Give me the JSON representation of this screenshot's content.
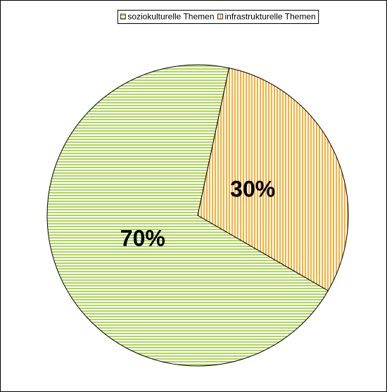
{
  "chart_data": {
    "type": "pie",
    "categories": [
      "soziokulturelle Themen",
      "infrastrukturelle Themen"
    ],
    "values": [
      70,
      30
    ],
    "value_labels": [
      "70%",
      "30%"
    ],
    "colors": [
      "#99cc33",
      "#ff9900"
    ],
    "legend": "top"
  }
}
